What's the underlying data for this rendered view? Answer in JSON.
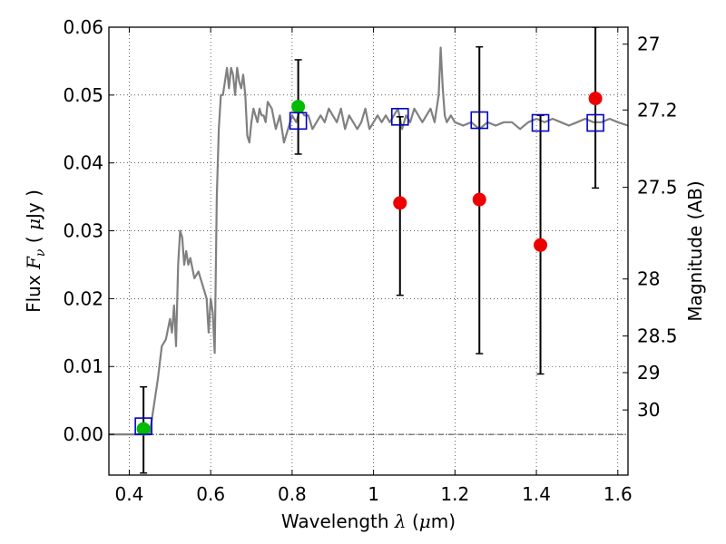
{
  "chart_data": {
    "type": "scatter",
    "xlabel": {
      "prefix": "Wavelength",
      "symbol": "λ",
      "unit_open": " (",
      "unit_mu": "μ",
      "unit_rest": "m)"
    },
    "ylabel": {
      "prefix": "Flux",
      "symbol": "F",
      "subscript": "ν",
      "unit_open": "(",
      "unit_mu": "μ",
      "unit_rest": "Jy )"
    },
    "y2label": "Magnitude (AB)",
    "xlim": [
      0.35,
      1.625
    ],
    "ylim": [
      -0.006,
      0.06
    ],
    "grid": true,
    "x_ticks": [
      0.4,
      0.6,
      0.8,
      1.0,
      1.2,
      1.4,
      1.6
    ],
    "x_tick_labels": [
      "0.4",
      "0.6",
      "0.8",
      "1",
      "1.2",
      "1.4",
      "1.6"
    ],
    "y_ticks": [
      0.0,
      0.01,
      0.02,
      0.03,
      0.04,
      0.05,
      0.06
    ],
    "y_tick_labels": [
      "0.00",
      "0.01",
      "0.02",
      "0.03",
      "0.04",
      "0.05",
      "0.06"
    ],
    "y2_ticks": [
      {
        "label": "27",
        "flux": 0.0575
      },
      {
        "label": "27.2",
        "flux": 0.0478
      },
      {
        "label": "27.5",
        "flux": 0.0364
      },
      {
        "label": "28",
        "flux": 0.0229
      },
      {
        "label": "28.5",
        "flux": 0.0145
      },
      {
        "label": "29",
        "flux": 0.0091
      },
      {
        "label": "30",
        "flux": 0.0036
      }
    ],
    "series": [
      {
        "kind": "model_sed",
        "color": "#808080",
        "x": [
          0.35,
          0.4,
          0.45,
          0.46,
          0.47,
          0.48,
          0.49,
          0.5,
          0.505,
          0.51,
          0.515,
          0.52,
          0.525,
          0.53,
          0.535,
          0.54,
          0.545,
          0.55,
          0.56,
          0.57,
          0.58,
          0.59,
          0.595,
          0.6,
          0.605,
          0.61,
          0.615,
          0.62,
          0.625,
          0.63,
          0.635,
          0.64,
          0.645,
          0.65,
          0.655,
          0.66,
          0.665,
          0.67,
          0.675,
          0.68,
          0.685,
          0.69,
          0.695,
          0.7,
          0.705,
          0.71,
          0.715,
          0.72,
          0.725,
          0.73,
          0.735,
          0.74,
          0.75,
          0.76,
          0.77,
          0.78,
          0.79,
          0.8,
          0.81,
          0.82,
          0.83,
          0.84,
          0.85,
          0.86,
          0.87,
          0.88,
          0.89,
          0.9,
          0.91,
          0.92,
          0.93,
          0.94,
          0.95,
          0.96,
          0.97,
          0.98,
          0.99,
          1.0,
          1.01,
          1.02,
          1.03,
          1.04,
          1.05,
          1.06,
          1.07,
          1.08,
          1.09,
          1.1,
          1.11,
          1.12,
          1.13,
          1.14,
          1.15,
          1.16,
          1.165,
          1.17,
          1.175,
          1.18,
          1.19,
          1.2,
          1.22,
          1.24,
          1.26,
          1.28,
          1.3,
          1.32,
          1.34,
          1.36,
          1.38,
          1.4,
          1.42,
          1.44,
          1.46,
          1.48,
          1.5,
          1.52,
          1.54,
          1.56,
          1.58,
          1.6,
          1.625
        ],
        "y": [
          0.0,
          0.0,
          0.0,
          0.004,
          0.008,
          0.013,
          0.014,
          0.017,
          0.015,
          0.019,
          0.013,
          0.025,
          0.03,
          0.029,
          0.025,
          0.027,
          0.025,
          0.026,
          0.023,
          0.024,
          0.022,
          0.02,
          0.015,
          0.02,
          0.018,
          0.012,
          0.035,
          0.045,
          0.05,
          0.05,
          0.052,
          0.054,
          0.051,
          0.054,
          0.053,
          0.05,
          0.054,
          0.052,
          0.051,
          0.053,
          0.05,
          0.044,
          0.043,
          0.046,
          0.048,
          0.047,
          0.046,
          0.048,
          0.047,
          0.047,
          0.046,
          0.049,
          0.048,
          0.045,
          0.047,
          0.043,
          0.045,
          0.047,
          0.046,
          0.048,
          0.047,
          0.047,
          0.045,
          0.046,
          0.047,
          0.046,
          0.048,
          0.047,
          0.046,
          0.048,
          0.045,
          0.047,
          0.046,
          0.045,
          0.046,
          0.048,
          0.045,
          0.046,
          0.047,
          0.046,
          0.047,
          0.046,
          0.047,
          0.048,
          0.045,
          0.047,
          0.046,
          0.048,
          0.047,
          0.046,
          0.047,
          0.048,
          0.046,
          0.05,
          0.057,
          0.051,
          0.047,
          0.046,
          0.047,
          0.046,
          0.0455,
          0.046,
          0.045,
          0.046,
          0.0455,
          0.046,
          0.046,
          0.045,
          0.046,
          0.0465,
          0.046,
          0.0465,
          0.046,
          0.0455,
          0.046,
          0.0465,
          0.046,
          0.046,
          0.0465,
          0.046,
          0.0455
        ]
      },
      {
        "kind": "observed_detection",
        "color": "#00bb00",
        "x": [
          0.435,
          0.815
        ],
        "y": [
          0.0008,
          0.0483
        ]
      },
      {
        "kind": "observed_limit",
        "color": "#ee0000",
        "x": [
          1.065,
          1.26,
          1.41,
          1.545
        ],
        "y": [
          0.0341,
          0.0346,
          0.0279,
          0.0495
        ]
      },
      {
        "kind": "model_photometry",
        "color": "#0000cc",
        "x": [
          0.435,
          0.815,
          1.065,
          1.26,
          1.41,
          1.545
        ],
        "y": [
          0.0012,
          0.0462,
          0.0468,
          0.0463,
          0.0459,
          0.0459
        ]
      }
    ],
    "errorbars": [
      {
        "x": 0.435,
        "low": -0.0057,
        "high": 0.007
      },
      {
        "x": 0.815,
        "low": 0.0413,
        "high": 0.0552
      },
      {
        "x": 1.065,
        "low": 0.0205,
        "high": 0.0468
      },
      {
        "x": 1.26,
        "low": 0.0119,
        "high": 0.0571
      },
      {
        "x": 1.41,
        "low": 0.0089,
        "high": 0.047
      },
      {
        "x": 1.545,
        "low": 0.0363,
        "high": 0.06
      }
    ]
  }
}
